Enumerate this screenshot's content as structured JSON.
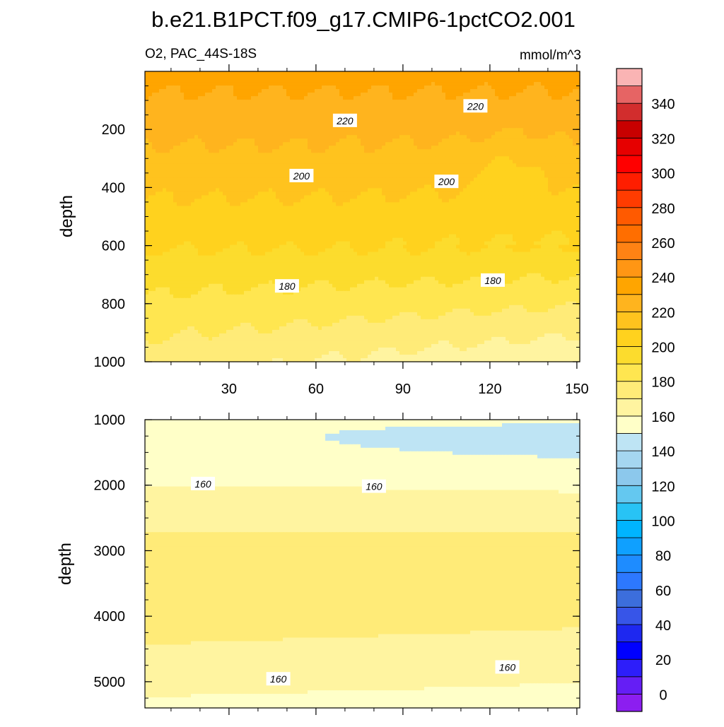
{
  "chart_data": {
    "type": "heatmap",
    "title": "b.e21.B1PCT.f09_g17.CMIP6-1pctCO2.001",
    "left_label": "O2, PAC_44S-18S",
    "units": "mmol/m^3",
    "x_range": [
      1,
      151
    ],
    "colorbar": {
      "ticks": [
        "0",
        "20",
        "40",
        "60",
        "80",
        "100",
        "120",
        "140",
        "160",
        "180",
        "200",
        "220",
        "240",
        "260",
        "280",
        "300",
        "320",
        "340"
      ],
      "levels": [
        -10,
        0,
        10,
        20,
        30,
        40,
        50,
        60,
        70,
        80,
        90,
        100,
        110,
        120,
        130,
        140,
        150,
        160,
        170,
        180,
        190,
        200,
        210,
        220,
        230,
        240,
        250,
        260,
        270,
        280,
        290,
        300,
        310,
        320,
        330,
        340,
        350,
        360
      ],
      "colors": [
        "#8c1ef0",
        "#651ef5",
        "#2d1efa",
        "#0000ff",
        "#1e28f0",
        "#3755e8",
        "#3c6edc",
        "#2d78ff",
        "#1e8cff",
        "#0fa0ff",
        "#00b4ff",
        "#28c3f5",
        "#64c8f0",
        "#8cc8ec",
        "#a5d6f0",
        "#bee4f4",
        "#ffffc8",
        "#fff4a0",
        "#ffeb78",
        "#ffe650",
        "#fcdc2d",
        "#ffd21e",
        "#ffc31e",
        "#ffb41e",
        "#ffa500",
        "#ff9614",
        "#ff8214",
        "#ff6e00",
        "#ff5a00",
        "#ff3c00",
        "#ff1e00",
        "#ff0000",
        "#e60000",
        "#c80000",
        "#d22d2d",
        "#e66464",
        "#fab4b4"
      ]
    },
    "panels": [
      {
        "name": "upper",
        "ylabel": "depth",
        "y_range": [
          0,
          1000
        ],
        "yticks": [
          "200",
          "400",
          "600",
          "800",
          "1000"
        ],
        "xticks": [
          "30",
          "60",
          "90",
          "120",
          "150"
        ],
        "contour_labels": [
          {
            "text": "220",
            "x": 70,
            "y": 170
          },
          {
            "text": "220",
            "x": 115,
            "y": 120
          },
          {
            "text": "200",
            "x": 55,
            "y": 360
          },
          {
            "text": "200",
            "x": 105,
            "y": 380
          },
          {
            "text": "180",
            "x": 50,
            "y": 740
          },
          {
            "text": "180",
            "x": 121,
            "y": 720
          }
        ]
      },
      {
        "name": "lower",
        "ylabel": "depth",
        "y_range": [
          1000,
          5400
        ],
        "yticks": [
          "1000",
          "2000",
          "3000",
          "4000",
          "5000"
        ],
        "contour_labels": [
          {
            "text": "160",
            "x": 21,
            "y": 1980
          },
          {
            "text": "160",
            "x": 80,
            "y": 2020
          },
          {
            "text": "160",
            "x": 47,
            "y": 4960
          },
          {
            "text": "160",
            "x": 126,
            "y": 4780
          }
        ]
      }
    ]
  }
}
